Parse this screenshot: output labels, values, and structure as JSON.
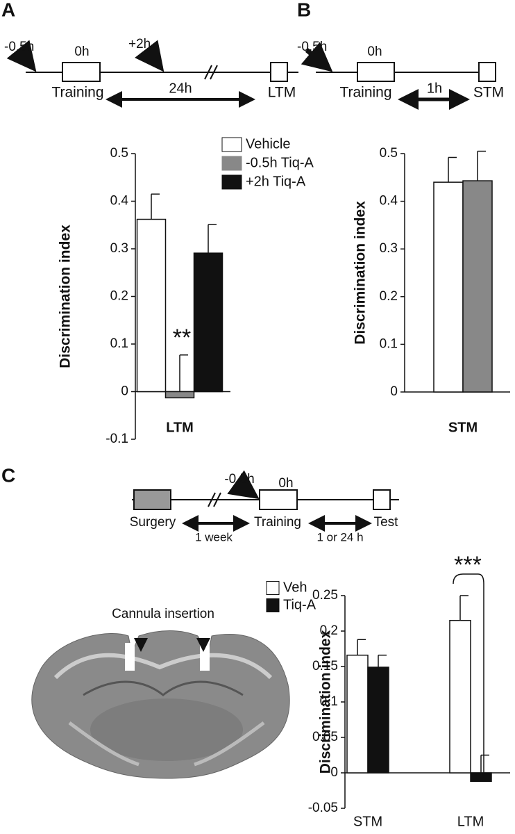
{
  "panel_labels": [
    "A",
    "B",
    "C"
  ],
  "timelines": [
    {
      "pre_time": "-0.5h",
      "zero_time": "0h",
      "post_time": "+2h",
      "start": "Training",
      "interval": "24h",
      "test": "LTM"
    },
    {
      "pre_time": "-0.5h",
      "zero_time": "0h",
      "start": "Training",
      "interval": "1h",
      "test": "STM"
    },
    {
      "surgery": "Surgery",
      "recovery": "1 week",
      "pre_time": "-0.5h",
      "zero_time": "0h",
      "start": "Training",
      "interval": "1 or 24 h",
      "test": "Test"
    }
  ],
  "image_annotation": "Cannula insertion",
  "chart_data": [
    {
      "type": "bar",
      "ylabel": "Discrimination index",
      "categories": [
        "LTM"
      ],
      "series": [
        {
          "name": "Vehicle",
          "color": "#ffffff",
          "values": [
            0.362
          ],
          "errors": [
            0.053
          ]
        },
        {
          "name": "-0.5h Tiq-A",
          "color": "#888888",
          "values": [
            -0.013
          ],
          "errors": [
            0.09
          ]
        },
        {
          "name": "+2h Tiq-A",
          "color": "#111111",
          "values": [
            0.291
          ],
          "errors": [
            0.06
          ]
        }
      ],
      "ylim": [
        -0.1,
        0.5
      ],
      "yticks": [
        -0.1,
        0,
        0.1,
        0.2,
        0.3,
        0.4,
        0.5
      ],
      "annotation": "**",
      "legend": "top-right"
    },
    {
      "type": "bar",
      "ylabel": "Discrimination index",
      "categories": [
        "STM"
      ],
      "series": [
        {
          "color": "#ffffff",
          "values": [
            0.44
          ],
          "errors": [
            0.052
          ]
        },
        {
          "color": "#888888",
          "values": [
            0.443
          ],
          "errors": [
            0.062
          ]
        }
      ],
      "ylim": [
        0,
        0.5
      ],
      "yticks": [
        0,
        0.1,
        0.2,
        0.3,
        0.4,
        0.5
      ]
    },
    {
      "type": "bar",
      "ylabel": "Discrimination index",
      "categories": [
        "STM",
        "LTM"
      ],
      "series": [
        {
          "name": "Veh",
          "color": "#ffffff",
          "values": [
            0.166,
            0.215
          ],
          "errors": [
            0.022,
            0.035
          ]
        },
        {
          "name": "Tiq-A",
          "color": "#111111",
          "values": [
            0.149,
            -0.012
          ],
          "errors": [
            0.017,
            0.037
          ]
        }
      ],
      "ylim": [
        -0.05,
        0.25
      ],
      "yticks": [
        -0.05,
        0,
        0.05,
        0.1,
        0.15,
        0.2,
        0.25
      ],
      "annotation": "***",
      "legend": "top-left"
    }
  ]
}
